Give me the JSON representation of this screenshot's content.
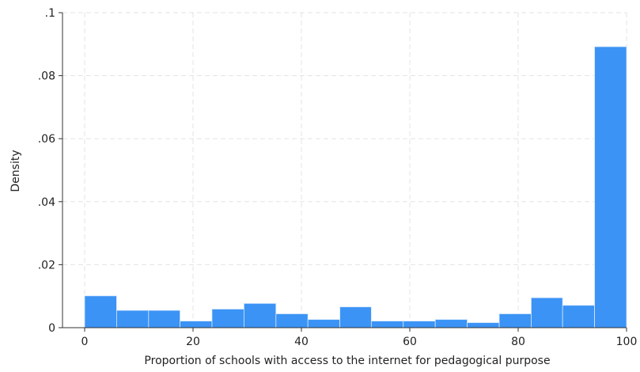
{
  "chart_data": {
    "type": "bar",
    "xlabel": "Proportion of schools with access to the internet for pedagogical purpose",
    "ylabel": "Density",
    "xlim": [
      0,
      100
    ],
    "ylim": [
      0,
      0.1
    ],
    "xticks": [
      0,
      20,
      40,
      60,
      80,
      100
    ],
    "xtick_labels": [
      "0",
      "20",
      "40",
      "60",
      "80",
      "100"
    ],
    "yticks": [
      0,
      0.02,
      0.04,
      0.06,
      0.08,
      0.1
    ],
    "ytick_labels": [
      "0",
      ".02",
      ".04",
      ".06",
      ".08",
      ".1"
    ],
    "grid": true,
    "bar_color": "#3b93f5",
    "grid_color": "#e3e3e3",
    "bins": [
      {
        "start": 0,
        "end": 5.9,
        "value": 0.0101
      },
      {
        "start": 5.9,
        "end": 11.8,
        "value": 0.0055
      },
      {
        "start": 11.8,
        "end": 17.6,
        "value": 0.0055
      },
      {
        "start": 17.6,
        "end": 23.5,
        "value": 0.0021
      },
      {
        "start": 23.5,
        "end": 29.4,
        "value": 0.0059
      },
      {
        "start": 29.4,
        "end": 35.3,
        "value": 0.0077
      },
      {
        "start": 35.3,
        "end": 41.2,
        "value": 0.0044
      },
      {
        "start": 41.2,
        "end": 47.1,
        "value": 0.0026
      },
      {
        "start": 47.1,
        "end": 52.9,
        "value": 0.0066
      },
      {
        "start": 52.9,
        "end": 58.8,
        "value": 0.0021
      },
      {
        "start": 58.8,
        "end": 64.7,
        "value": 0.0021
      },
      {
        "start": 64.7,
        "end": 70.6,
        "value": 0.0026
      },
      {
        "start": 70.6,
        "end": 76.5,
        "value": 0.0016
      },
      {
        "start": 76.5,
        "end": 82.4,
        "value": 0.0044
      },
      {
        "start": 82.4,
        "end": 88.2,
        "value": 0.0095
      },
      {
        "start": 88.2,
        "end": 94.1,
        "value": 0.0071
      },
      {
        "start": 94.1,
        "end": 100,
        "value": 0.0892
      }
    ]
  }
}
